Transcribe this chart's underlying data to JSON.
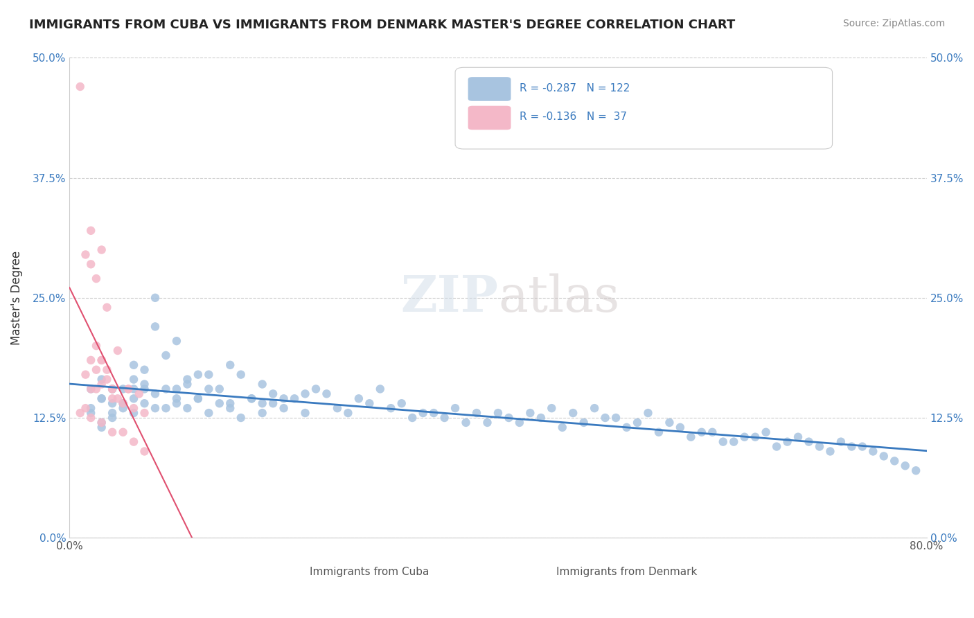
{
  "title": "IMMIGRANTS FROM CUBA VS IMMIGRANTS FROM DENMARK MASTER'S DEGREE CORRELATION CHART",
  "source": "Source: ZipAtlas.com",
  "xlabel": "",
  "ylabel": "Master's Degree",
  "xlim": [
    0.0,
    0.8
  ],
  "ylim": [
    0.0,
    0.5
  ],
  "xtick_labels": [
    "0.0%",
    "80.0%"
  ],
  "ytick_labels": [
    "0.0%",
    "12.5%",
    "25.0%",
    "37.5%",
    "50.0%"
  ],
  "ytick_positions": [
    0.0,
    0.125,
    0.25,
    0.375,
    0.5
  ],
  "grid_color": "#cccccc",
  "background_color": "#ffffff",
  "cuba_color": "#a8c4e0",
  "denmark_color": "#f4b8c8",
  "cuba_line_color": "#3a7abf",
  "denmark_line_color": "#e05070",
  "R_cuba": -0.287,
  "N_cuba": 122,
  "R_denmark": -0.136,
  "N_denmark": 37,
  "watermark": "ZIPatlas",
  "legend_labels": [
    "Immigrants from Cuba",
    "Immigrants from Denmark"
  ],
  "cuba_scatter_x": [
    0.02,
    0.03,
    0.04,
    0.02,
    0.05,
    0.03,
    0.06,
    0.02,
    0.04,
    0.05,
    0.07,
    0.06,
    0.08,
    0.03,
    0.05,
    0.04,
    0.06,
    0.07,
    0.09,
    0.1,
    0.08,
    0.06,
    0.04,
    0.03,
    0.05,
    0.07,
    0.09,
    0.11,
    0.12,
    0.1,
    0.08,
    0.13,
    0.15,
    0.06,
    0.07,
    0.08,
    0.09,
    0.1,
    0.11,
    0.12,
    0.14,
    0.16,
    0.17,
    0.18,
    0.13,
    0.15,
    0.19,
    0.2,
    0.22,
    0.18,
    0.1,
    0.11,
    0.12,
    0.13,
    0.14,
    0.15,
    0.16,
    0.17,
    0.18,
    0.19,
    0.2,
    0.21,
    0.22,
    0.23,
    0.25,
    0.26,
    0.27,
    0.28,
    0.3,
    0.32,
    0.34,
    0.35,
    0.36,
    0.37,
    0.38,
    0.39,
    0.4,
    0.41,
    0.42,
    0.43,
    0.44,
    0.45,
    0.46,
    0.47,
    0.48,
    0.5,
    0.52,
    0.53,
    0.55,
    0.57,
    0.58,
    0.6,
    0.62,
    0.63,
    0.65,
    0.67,
    0.68,
    0.7,
    0.72,
    0.73,
    0.75,
    0.76,
    0.24,
    0.29,
    0.31,
    0.33,
    0.49,
    0.51,
    0.54,
    0.56,
    0.59,
    0.61,
    0.64,
    0.66,
    0.69,
    0.71,
    0.74,
    0.77,
    0.78,
    0.79,
    0.03,
    0.04
  ],
  "cuba_scatter_y": [
    0.155,
    0.145,
    0.14,
    0.13,
    0.155,
    0.12,
    0.145,
    0.135,
    0.155,
    0.14,
    0.16,
    0.155,
    0.25,
    0.145,
    0.135,
    0.125,
    0.18,
    0.155,
    0.19,
    0.205,
    0.22,
    0.165,
    0.13,
    0.115,
    0.14,
    0.175,
    0.155,
    0.165,
    0.17,
    0.145,
    0.135,
    0.17,
    0.18,
    0.13,
    0.14,
    0.15,
    0.135,
    0.155,
    0.16,
    0.145,
    0.155,
    0.17,
    0.145,
    0.16,
    0.155,
    0.14,
    0.15,
    0.145,
    0.15,
    0.14,
    0.14,
    0.135,
    0.145,
    0.13,
    0.14,
    0.135,
    0.125,
    0.145,
    0.13,
    0.14,
    0.135,
    0.145,
    0.13,
    0.155,
    0.135,
    0.13,
    0.145,
    0.14,
    0.135,
    0.125,
    0.13,
    0.125,
    0.135,
    0.12,
    0.13,
    0.12,
    0.13,
    0.125,
    0.12,
    0.13,
    0.125,
    0.135,
    0.115,
    0.13,
    0.12,
    0.125,
    0.115,
    0.12,
    0.11,
    0.115,
    0.105,
    0.11,
    0.1,
    0.105,
    0.11,
    0.1,
    0.105,
    0.095,
    0.1,
    0.095,
    0.09,
    0.085,
    0.15,
    0.155,
    0.14,
    0.13,
    0.135,
    0.125,
    0.13,
    0.12,
    0.11,
    0.1,
    0.105,
    0.095,
    0.1,
    0.09,
    0.095,
    0.08,
    0.075,
    0.07,
    0.165,
    0.155
  ],
  "denmark_scatter_x": [
    0.01,
    0.02,
    0.015,
    0.025,
    0.03,
    0.02,
    0.035,
    0.04,
    0.03,
    0.025,
    0.045,
    0.015,
    0.02,
    0.025,
    0.03,
    0.035,
    0.04,
    0.045,
    0.05,
    0.055,
    0.06,
    0.065,
    0.07,
    0.025,
    0.03,
    0.035,
    0.04,
    0.015,
    0.02,
    0.055,
    0.01,
    0.02,
    0.03,
    0.04,
    0.05,
    0.06,
    0.07
  ],
  "denmark_scatter_y": [
    0.47,
    0.32,
    0.295,
    0.27,
    0.3,
    0.285,
    0.24,
    0.155,
    0.185,
    0.155,
    0.195,
    0.17,
    0.185,
    0.2,
    0.16,
    0.175,
    0.155,
    0.145,
    0.14,
    0.155,
    0.135,
    0.15,
    0.13,
    0.175,
    0.185,
    0.165,
    0.145,
    0.135,
    0.155,
    0.155,
    0.13,
    0.125,
    0.12,
    0.11,
    0.11,
    0.1,
    0.09
  ]
}
